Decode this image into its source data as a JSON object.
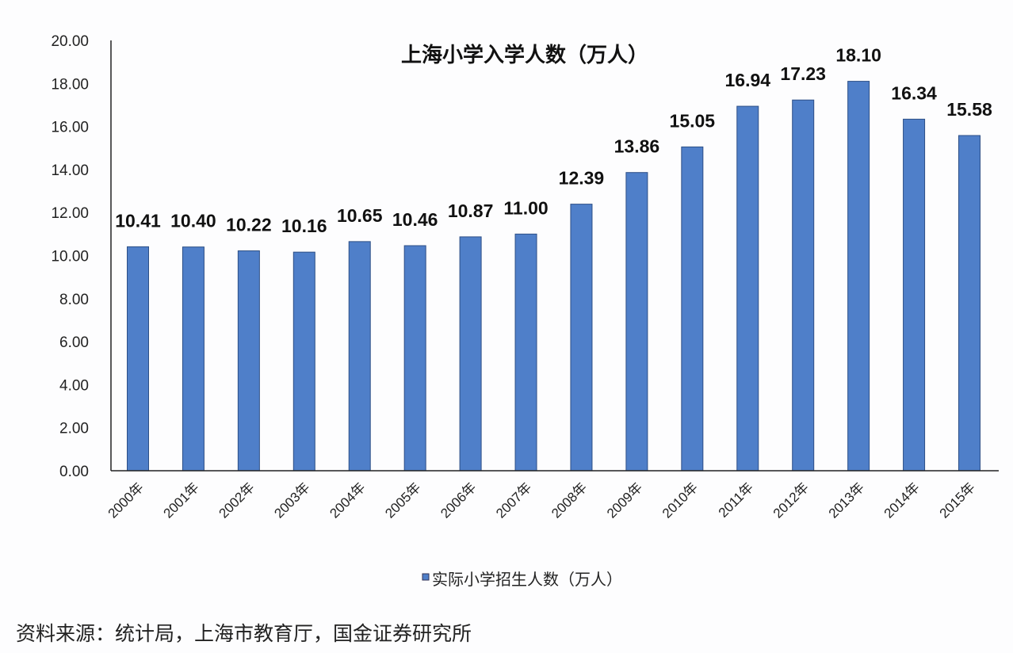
{
  "chart_data": {
    "type": "bar",
    "title": "上海小学入学人数（万人）",
    "categories": [
      "2000年",
      "2001年",
      "2002年",
      "2003年",
      "2004年",
      "2005年",
      "2006年",
      "2007年",
      "2008年",
      "2009年",
      "2010年",
      "2011年",
      "2012年",
      "2013年",
      "2014年",
      "2015年"
    ],
    "series": [
      {
        "name": "实际小学招生人数（万人）",
        "values": [
          10.41,
          10.4,
          10.22,
          10.16,
          10.65,
          10.46,
          10.87,
          11.0,
          12.39,
          13.86,
          15.05,
          16.94,
          17.23,
          18.1,
          16.34,
          15.58
        ],
        "labels": [
          "10.41",
          "10.40",
          "10.22",
          "10.16",
          "10.65",
          "10.46",
          "10.87",
          "11.00",
          "12.39",
          "13.86",
          "15.05",
          "16.94",
          "17.23",
          "18.10",
          "16.34",
          "15.58"
        ]
      }
    ],
    "ylim": [
      0,
      20
    ],
    "yticks": [
      "0.00",
      "2.00",
      "4.00",
      "6.00",
      "8.00",
      "10.00",
      "12.00",
      "14.00",
      "16.00",
      "18.00",
      "20.00"
    ],
    "xlabel": "",
    "ylabel": "",
    "grid": false,
    "legend_position": "bottom",
    "bar_color": "#4f7fc9"
  },
  "source": "资料来源：统计局，上海市教育厅，国金证券研究所"
}
